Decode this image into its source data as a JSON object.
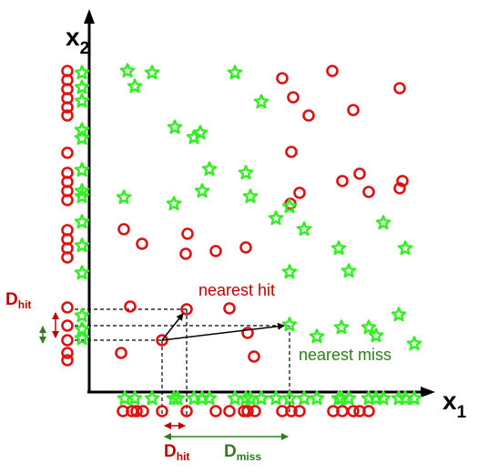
{
  "labels": {
    "x_axis": "x",
    "x_axis_sub": "1",
    "y_axis": "x",
    "y_axis_sub": "2",
    "nearest_hit": "nearest hit",
    "nearest_miss": "nearest miss",
    "d_hit_side": "D",
    "d_hit_side_sub": "hit",
    "d_hit_bottom": "D",
    "d_hit_bottom_sub": "hit",
    "d_miss_bottom": "D",
    "d_miss_bottom_sub": "miss"
  },
  "colors": {
    "red_class": "#e01010",
    "green_class": "#33ee22",
    "hit_label": "#c00000",
    "miss_label": "#2e7d1f",
    "axis": "#000000"
  },
  "legend_shapes": {
    "red_class": "circle",
    "green_class": "star"
  }
}
